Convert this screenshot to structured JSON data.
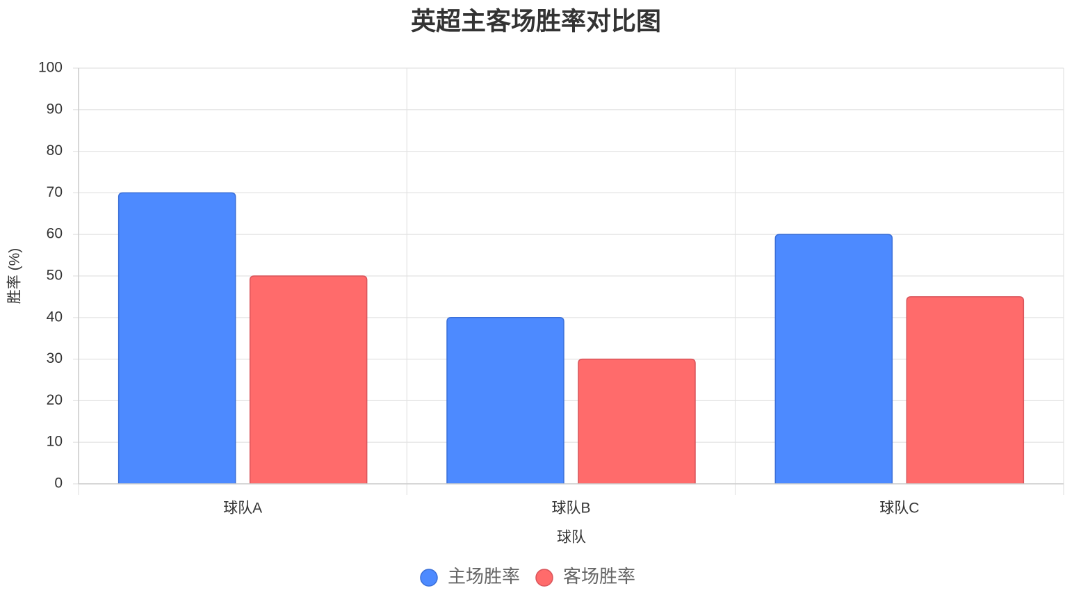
{
  "chart_data": {
    "type": "bar",
    "title": "英超主客场胜率对比图",
    "x_label": "球队",
    "y_label": "胜率 (%)",
    "categories": [
      "球队A",
      "球队B",
      "球队C"
    ],
    "series": [
      {
        "name": "主场胜率",
        "color": "#4d8aff",
        "border_color": "#3a6fd8",
        "values": [
          70,
          40,
          60
        ]
      },
      {
        "name": "客场胜率",
        "color": "#ff6b6b",
        "border_color": "#d9545a",
        "values": [
          50,
          30,
          45
        ]
      }
    ],
    "ylim": [
      0,
      100
    ],
    "yticks": [
      0,
      10,
      20,
      30,
      40,
      50,
      60,
      70,
      80,
      90,
      100
    ],
    "grid": true,
    "legend": "bottom"
  }
}
